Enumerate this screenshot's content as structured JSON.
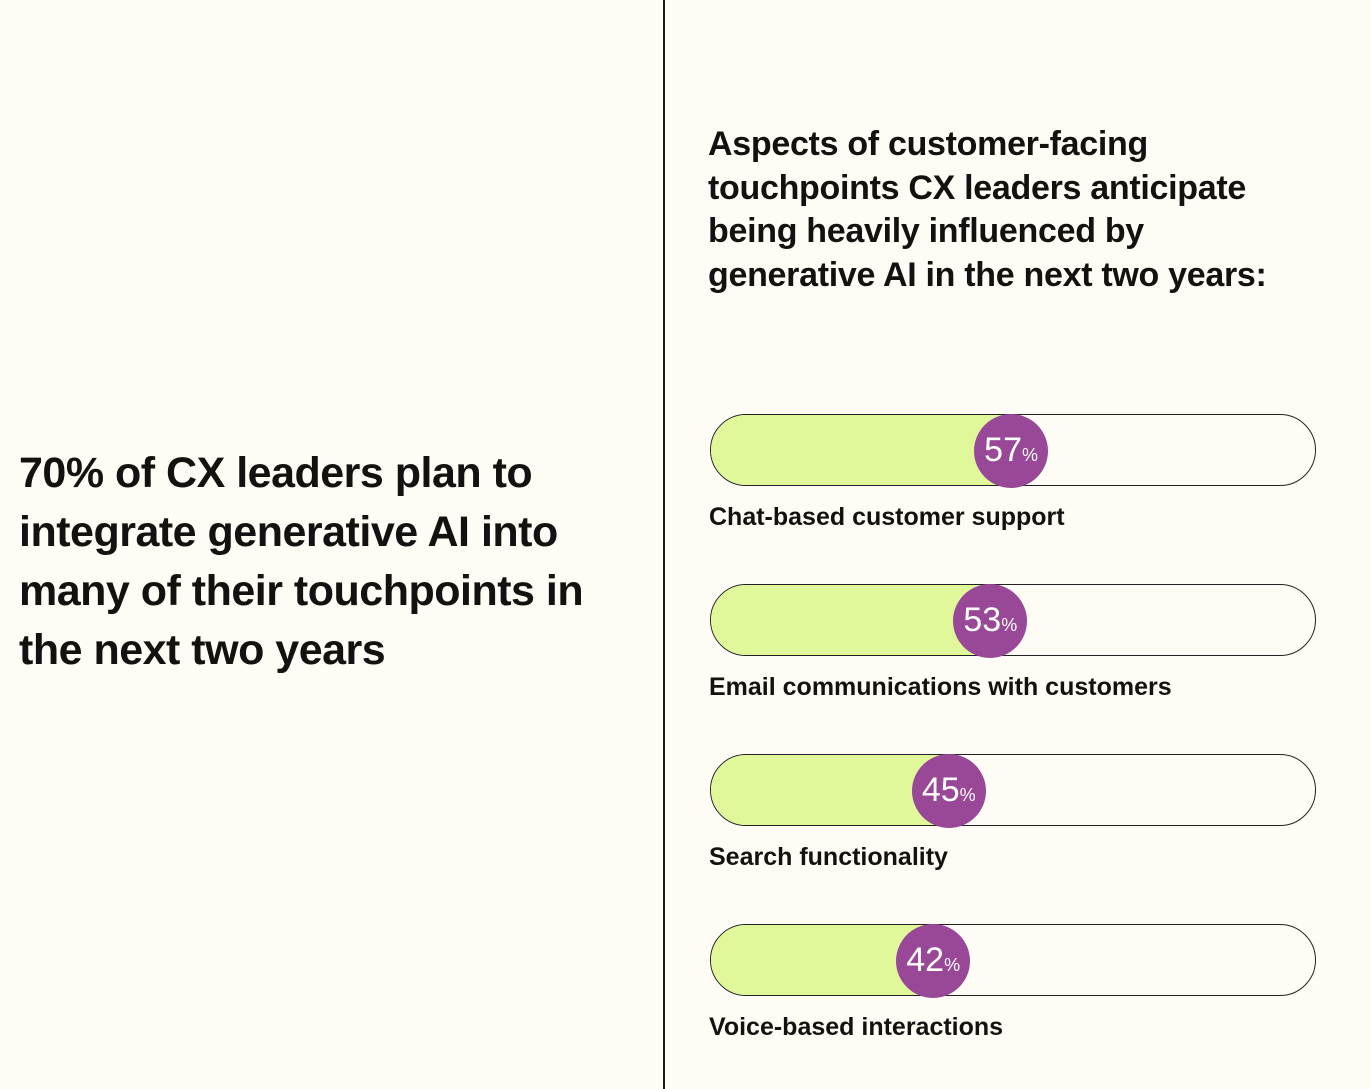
{
  "headline": "70% of CX leaders plan to integrate generative AI into many of their touchpoints in the next two years",
  "chart_data": {
    "type": "bar",
    "orientation": "horizontal",
    "title": "Aspects of customer-facing touchpoints CX leaders anticipate being heavily influenced by generative AI in the next two years:",
    "categories": [
      "Chat-based customer support",
      "Email communications with customers",
      "Search functionality",
      "Voice-based interactions"
    ],
    "values": [
      57,
      53,
      45,
      42
    ],
    "unit": "%",
    "xlim": [
      0,
      100
    ],
    "colors": {
      "fill": "#e0f79a",
      "bubble": "#984896",
      "background": "#fffcf5"
    }
  }
}
